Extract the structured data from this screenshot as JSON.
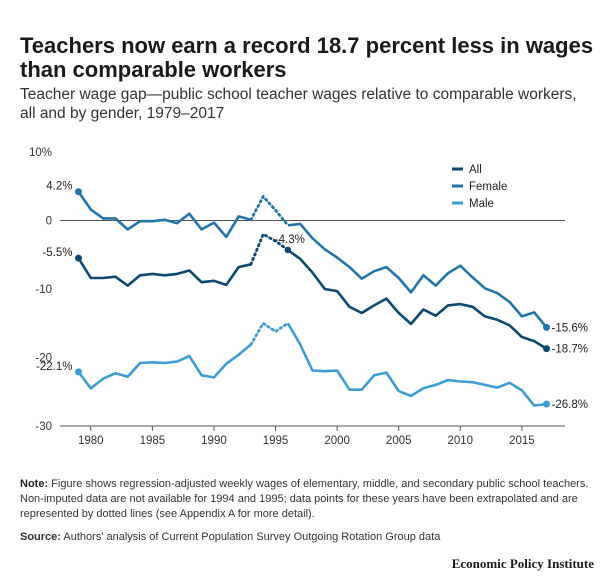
{
  "header": {
    "title": "Teachers now earn a record 18.7 percent less in wages than comparable workers",
    "subtitle": "Teacher wage gap—public school teacher wages relative to comparable workers, all and by gender, 1979–2017"
  },
  "footer": {
    "note_label": "Note:",
    "note_text": " Figure shows regression-adjusted weekly wages of elementary, middle, and secondary public school teachers. Non-imputed data are not available for 1994 and 1995; data points for these years have been extrapolated and are represented by dotted lines (see Appendix A for more detail).",
    "source_label": "Source:",
    "source_text": " Authors' analysis of Current Population Survey Outgoing Rotation Group data",
    "brand": "Economic Policy Institute"
  },
  "chart_data": {
    "type": "line",
    "x": [
      1979,
      1980,
      1981,
      1982,
      1983,
      1984,
      1985,
      1986,
      1987,
      1988,
      1989,
      1990,
      1991,
      1992,
      1993,
      1994,
      1995,
      1996,
      1997,
      1998,
      1999,
      2000,
      2001,
      2002,
      2003,
      2004,
      2005,
      2006,
      2007,
      2008,
      2009,
      2010,
      2011,
      2012,
      2013,
      2014,
      2015,
      2016,
      2017
    ],
    "xticks": [
      "1980",
      "1985",
      "1990",
      "1995",
      "2000",
      "2005",
      "2010",
      "2015"
    ],
    "xtick_values": [
      1980,
      1985,
      1990,
      1995,
      2000,
      2005,
      2010,
      2015
    ],
    "yticks": [
      {
        "value": 10,
        "label": "10%"
      },
      {
        "value": 0,
        "label": "0"
      },
      {
        "value": -10,
        "label": "-10"
      },
      {
        "value": -20,
        "label": "-20"
      },
      {
        "value": -30,
        "label": "-30"
      }
    ],
    "ylim": [
      -30,
      10
    ],
    "xlim": [
      1977.5,
      2018.5
    ],
    "zero_line": true,
    "extrapolated_years": [
      1994,
      1995
    ],
    "legend_position": "top-right",
    "series": [
      {
        "name": "All",
        "color": "#0b4a6e",
        "values": [
          -5.5,
          -8.4,
          -8.4,
          -8.2,
          -9.5,
          -8.0,
          -7.8,
          -8.0,
          -7.8,
          -7.3,
          -9.0,
          -8.8,
          -9.4,
          -6.8,
          -6.4,
          -2.0,
          -3.0,
          -4.3,
          -5.6,
          -7.6,
          -10.0,
          -10.3,
          -12.6,
          -13.5,
          -12.4,
          -11.4,
          -13.5,
          -15.1,
          -13.0,
          -13.9,
          -12.4,
          -12.2,
          -12.6,
          -14.0,
          -14.5,
          -15.3,
          -17.0,
          -17.6,
          -18.7
        ],
        "start_label": "-5.5%",
        "end_label": "-18.7%"
      },
      {
        "name": "Female",
        "color": "#2275a8",
        "values": [
          4.2,
          1.6,
          0.3,
          0.3,
          -1.3,
          -0.1,
          -0.1,
          0.1,
          -0.4,
          1.0,
          -1.3,
          -0.3,
          -2.4,
          0.6,
          0.1,
          3.5,
          1.5,
          -0.7,
          -0.5,
          -2.6,
          -4.2,
          -5.4,
          -6.8,
          -8.5,
          -7.4,
          -6.8,
          -8.4,
          -10.5,
          -8.0,
          -9.5,
          -7.7,
          -6.6,
          -8.3,
          -9.9,
          -10.6,
          -11.9,
          -14.0,
          -13.4,
          -15.6
        ],
        "start_label": "4.2%",
        "end_label": "-15.6%"
      },
      {
        "name": "Male",
        "color": "#3d9dd4",
        "values": [
          -22.1,
          -24.5,
          -23.1,
          -22.3,
          -22.8,
          -20.8,
          -20.7,
          -20.8,
          -20.6,
          -19.8,
          -22.6,
          -22.9,
          -20.9,
          -19.6,
          -18.1,
          -15.0,
          -16.2,
          -15.0,
          -18.1,
          -21.9,
          -22.0,
          -21.9,
          -24.7,
          -24.7,
          -22.6,
          -22.2,
          -24.9,
          -25.6,
          -24.5,
          -24.0,
          -23.3,
          -23.5,
          -23.6,
          -24.0,
          -24.4,
          -23.7,
          -24.8,
          -27.0,
          -26.8
        ],
        "start_label": "-22.1%",
        "end_label": "-26.8%"
      }
    ],
    "annotations": [
      {
        "year": 1996,
        "series": "All",
        "label": "-4.3%"
      }
    ]
  }
}
